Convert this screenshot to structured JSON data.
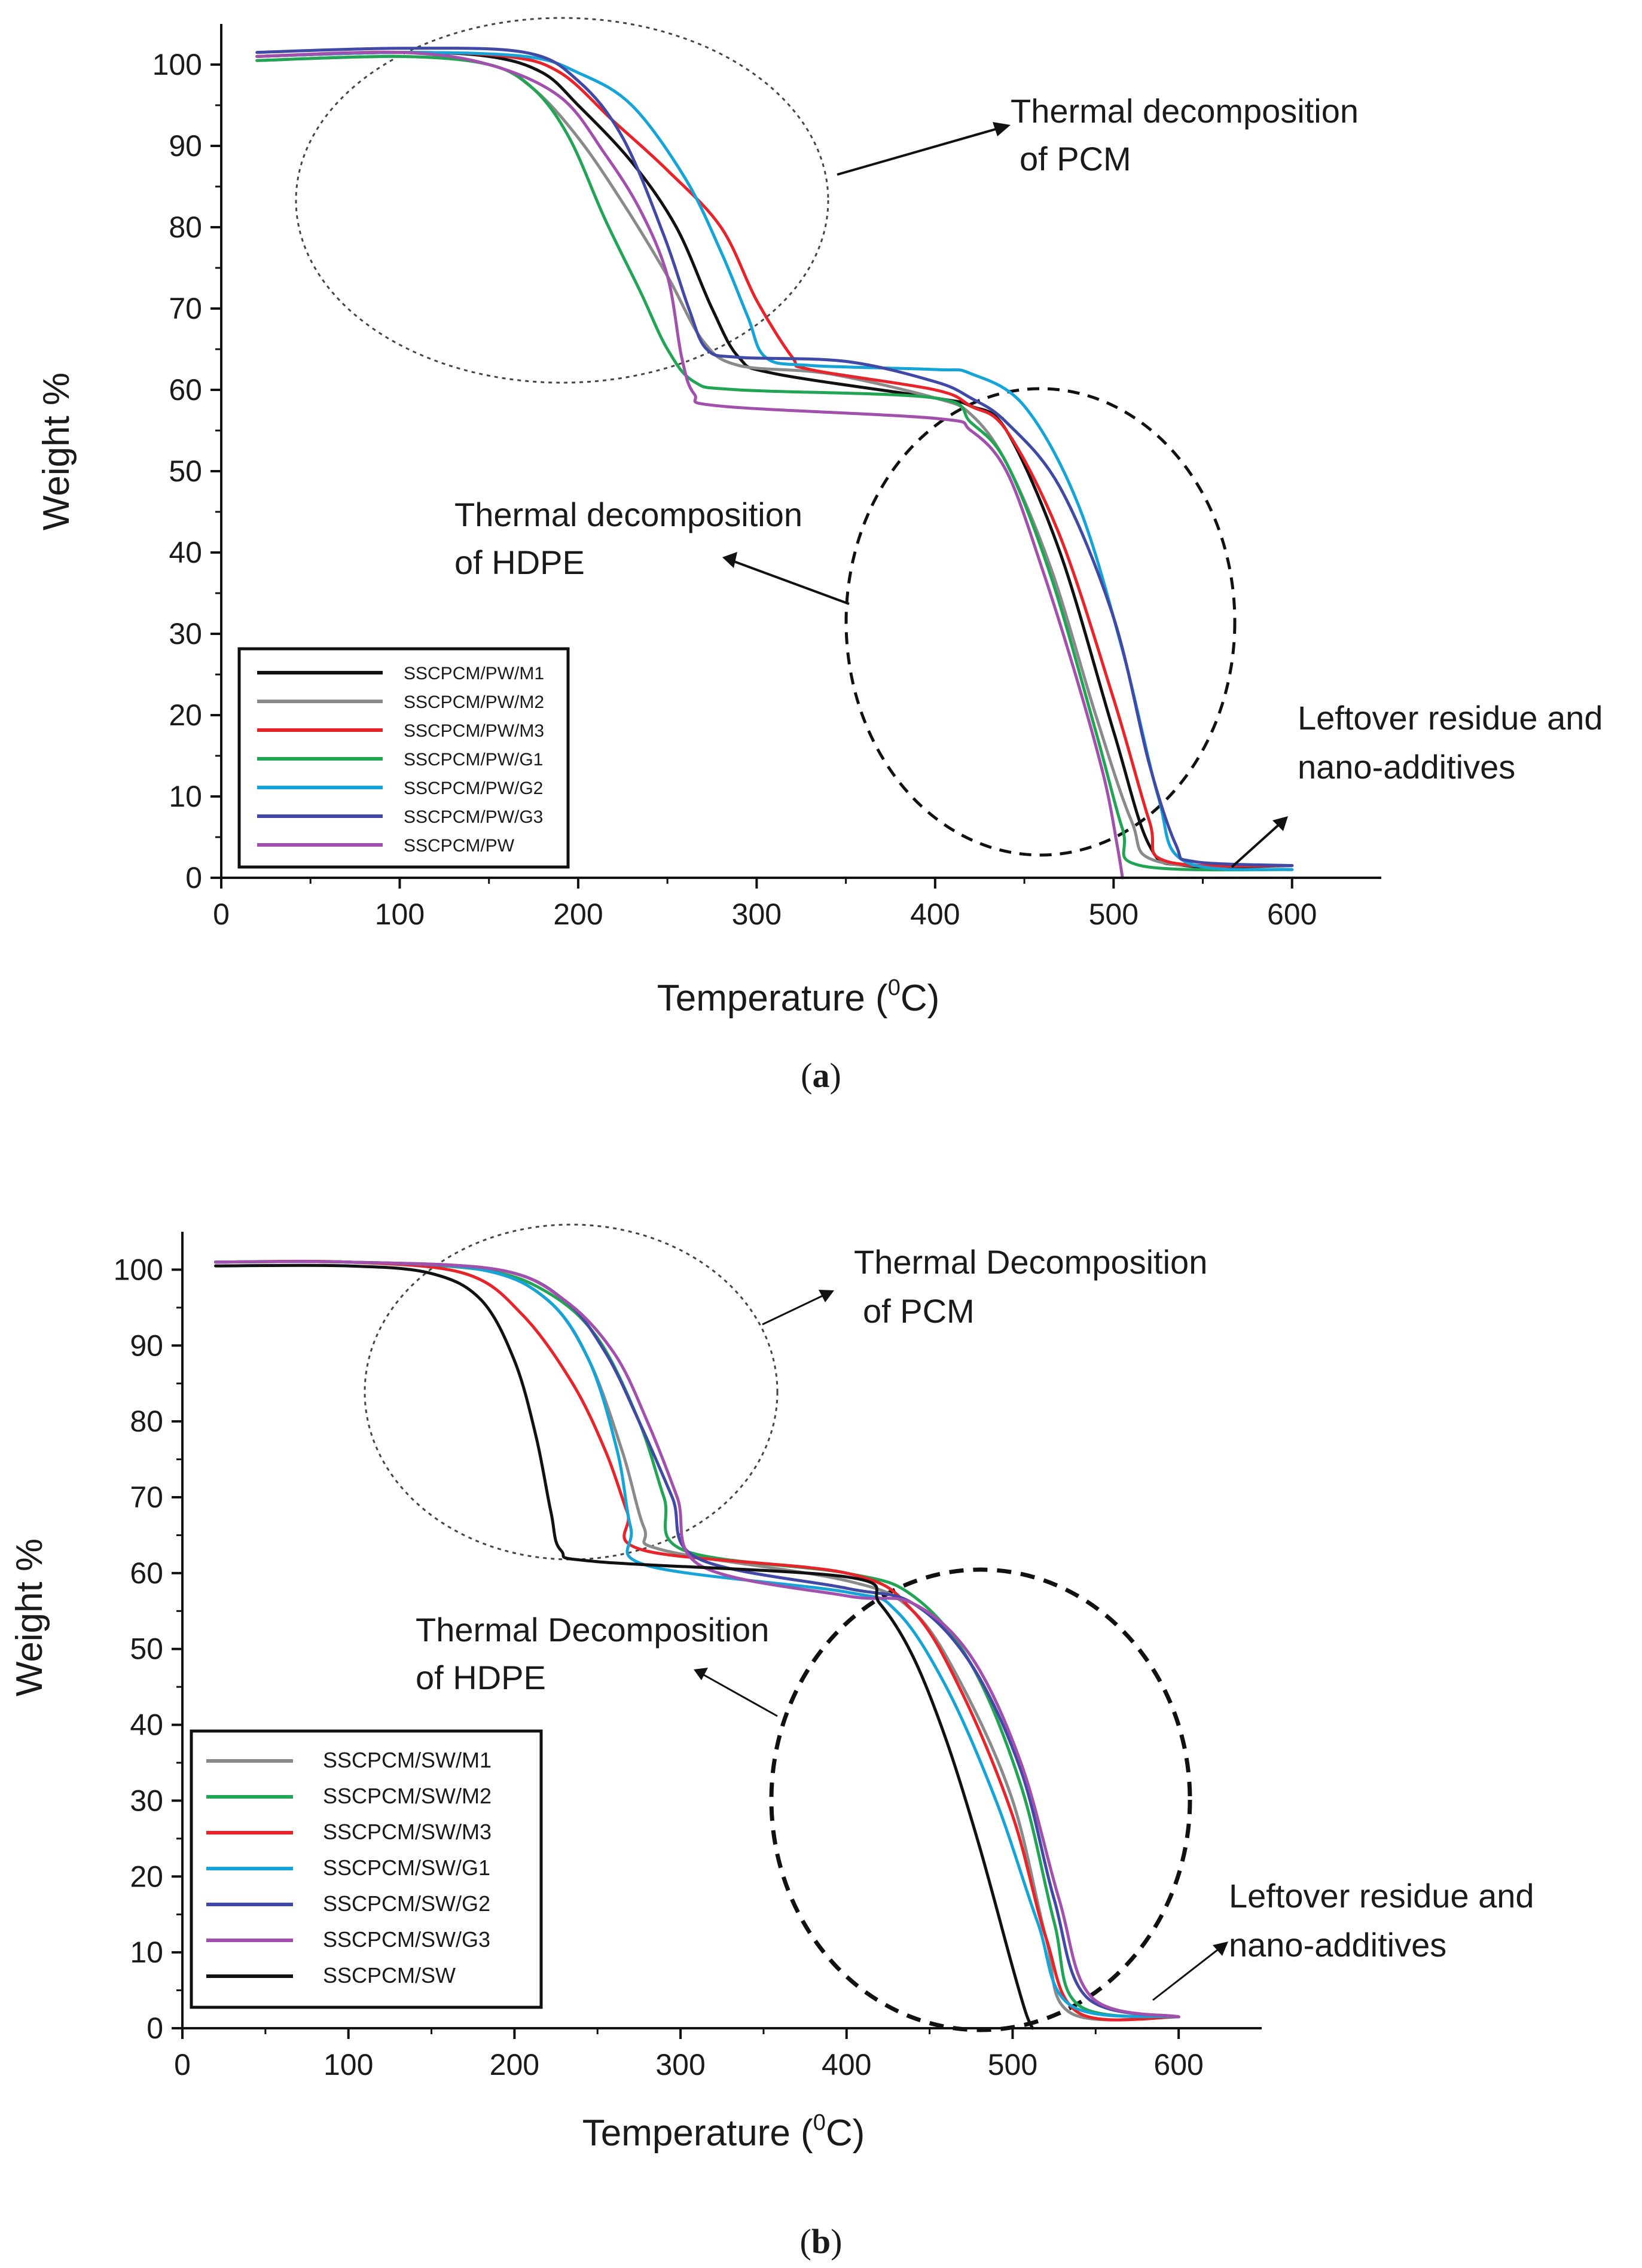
{
  "chart_data": [
    {
      "type": "line",
      "caption_letter": "a",
      "xlabel": "Temperature (",
      "xlabel_sup": "0",
      "xlabel_suffix": "C)",
      "ylabel": "Weight %",
      "xlim": [
        0,
        650
      ],
      "ylim": [
        0,
        105
      ],
      "xticks": [
        0,
        100,
        200,
        300,
        400,
        500,
        600
      ],
      "yticks": [
        0,
        10,
        20,
        30,
        40,
        50,
        60,
        70,
        80,
        90,
        100
      ],
      "legend_position": "bottom-left",
      "annotations": [
        {
          "lines": [
            "Thermal decomposition",
            "of PCM"
          ]
        },
        {
          "lines": [
            "Thermal decomposition",
            "of HDPE"
          ]
        },
        {
          "lines": [
            "Leftover residue and",
            "nano-additives"
          ]
        }
      ],
      "series": [
        {
          "name": "SSCPCM/PW/M1",
          "color": "#111111",
          "points": [
            [
              20,
              101
            ],
            [
              100,
              101.5
            ],
            [
              150,
              101
            ],
            [
              180,
              99
            ],
            [
              200,
              95
            ],
            [
              230,
              88
            ],
            [
              255,
              80
            ],
            [
              275,
              70
            ],
            [
              290,
              64
            ],
            [
              310,
              62
            ],
            [
              400,
              59
            ],
            [
              420,
              58
            ],
            [
              440,
              55
            ],
            [
              470,
              40
            ],
            [
              500,
              18
            ],
            [
              520,
              4
            ],
            [
              540,
              1.5
            ],
            [
              600,
              1.5
            ]
          ]
        },
        {
          "name": "SSCPCM/PW/M2",
          "color": "#8a8a8a",
          "points": [
            [
              20,
              100.5
            ],
            [
              100,
              101
            ],
            [
              150,
              100
            ],
            [
              175,
              97
            ],
            [
              200,
              91
            ],
            [
              225,
              83
            ],
            [
              250,
              74
            ],
            [
              270,
              66
            ],
            [
              290,
              63
            ],
            [
              340,
              62
            ],
            [
              400,
              59
            ],
            [
              420,
              57
            ],
            [
              440,
              51
            ],
            [
              465,
              38
            ],
            [
              490,
              20
            ],
            [
              510,
              7
            ],
            [
              525,
              2
            ],
            [
              600,
              1.5
            ]
          ]
        },
        {
          "name": "SSCPCM/PW/M3",
          "color": "#e8232a",
          "points": [
            [
              20,
              101
            ],
            [
              100,
              101.5
            ],
            [
              160,
              101
            ],
            [
              190,
              99
            ],
            [
              220,
              93
            ],
            [
              250,
              87
            ],
            [
              280,
              80
            ],
            [
              300,
              71
            ],
            [
              320,
              64
            ],
            [
              330,
              62.5
            ],
            [
              400,
              60
            ],
            [
              420,
              58
            ],
            [
              440,
              55
            ],
            [
              470,
              42
            ],
            [
              500,
              22
            ],
            [
              520,
              7
            ],
            [
              530,
              2
            ],
            [
              600,
              1.5
            ]
          ]
        },
        {
          "name": "SSCPCM/PW/G1",
          "color": "#21a554",
          "points": [
            [
              20,
              100.5
            ],
            [
              100,
              101
            ],
            [
              150,
              100
            ],
            [
              175,
              97
            ],
            [
              195,
              91
            ],
            [
              215,
              81
            ],
            [
              235,
              72
            ],
            [
              250,
              65
            ],
            [
              265,
              61
            ],
            [
              290,
              60
            ],
            [
              400,
              59
            ],
            [
              420,
              56
            ],
            [
              440,
              51
            ],
            [
              465,
              37
            ],
            [
              490,
              18
            ],
            [
              505,
              6
            ],
            [
              515,
              1.5
            ],
            [
              600,
              1
            ]
          ]
        },
        {
          "name": "SSCPCM/PW/G2",
          "color": "#15a4d8",
          "points": [
            [
              20,
              101
            ],
            [
              100,
              101.5
            ],
            [
              170,
              101
            ],
            [
              200,
              99
            ],
            [
              230,
              95
            ],
            [
              260,
              86
            ],
            [
              280,
              77
            ],
            [
              295,
              69
            ],
            [
              305,
              64
            ],
            [
              330,
              63
            ],
            [
              400,
              62.5
            ],
            [
              420,
              62
            ],
            [
              450,
              58
            ],
            [
              480,
              46
            ],
            [
              505,
              28
            ],
            [
              525,
              10
            ],
            [
              540,
              2
            ],
            [
              600,
              1
            ]
          ]
        },
        {
          "name": "SSCPCM/PW/G3",
          "color": "#4049a5",
          "points": [
            [
              20,
              101.5
            ],
            [
              100,
              102
            ],
            [
              170,
              101.5
            ],
            [
              200,
              98
            ],
            [
              225,
              91
            ],
            [
              248,
              79
            ],
            [
              262,
              70
            ],
            [
              272,
              65
            ],
            [
              290,
              64
            ],
            [
              350,
              63.5
            ],
            [
              400,
              61
            ],
            [
              420,
              59
            ],
            [
              440,
              56
            ],
            [
              470,
              48
            ],
            [
              500,
              32
            ],
            [
              520,
              14
            ],
            [
              535,
              4
            ],
            [
              545,
              2
            ],
            [
              600,
              1.5
            ]
          ]
        },
        {
          "name": "SSCPCM/PW",
          "color": "#a24fad",
          "points": [
            [
              20,
              101
            ],
            [
              100,
              101.5
            ],
            [
              150,
              100
            ],
            [
              190,
              96
            ],
            [
              215,
              89
            ],
            [
              235,
              82
            ],
            [
              250,
              74
            ],
            [
              258,
              64
            ],
            [
              265,
              59.5
            ],
            [
              280,
              58
            ],
            [
              400,
              56.5
            ],
            [
              420,
              55
            ],
            [
              440,
              50
            ],
            [
              460,
              38
            ],
            [
              480,
              24
            ],
            [
              495,
              12
            ],
            [
              502,
              4
            ],
            [
              505,
              0
            ]
          ]
        }
      ]
    },
    {
      "type": "line",
      "caption_letter": "b",
      "xlabel": "Temperature (",
      "xlabel_sup": "0",
      "xlabel_suffix": "C)",
      "ylabel": "Weight %",
      "xlim": [
        0,
        650
      ],
      "ylim": [
        0,
        105
      ],
      "xticks": [
        0,
        100,
        200,
        300,
        400,
        500,
        600
      ],
      "yticks": [
        0,
        10,
        20,
        30,
        40,
        50,
        60,
        70,
        80,
        90,
        100
      ],
      "legend_position": "bottom-left",
      "annotations": [
        {
          "lines": [
            "Thermal Decomposition",
            "of PCM"
          ]
        },
        {
          "lines": [
            "Thermal Decomposition",
            "of HDPE"
          ]
        },
        {
          "lines": [
            "Leftover residue and",
            "nano-additives"
          ]
        }
      ],
      "series": [
        {
          "name": "SSCPCM/SW/M1",
          "color": "#8a8a8a",
          "points": [
            [
              20,
              101
            ],
            [
              100,
              101
            ],
            [
              180,
              100
            ],
            [
              220,
              96
            ],
            [
              245,
              88
            ],
            [
              265,
              76
            ],
            [
              278,
              66
            ],
            [
              290,
              63
            ],
            [
              400,
              59
            ],
            [
              440,
              55
            ],
            [
              470,
              45
            ],
            [
              500,
              30
            ],
            [
              520,
              12
            ],
            [
              535,
              2
            ],
            [
              600,
              1.5
            ]
          ]
        },
        {
          "name": "SSCPCM/SW/M2",
          "color": "#21a554",
          "points": [
            [
              20,
              101
            ],
            [
              100,
              101
            ],
            [
              180,
              100
            ],
            [
              220,
              97
            ],
            [
              250,
              91
            ],
            [
              275,
              80
            ],
            [
              290,
              70
            ],
            [
              302,
              63
            ],
            [
              400,
              60
            ],
            [
              440,
              57
            ],
            [
              475,
              48
            ],
            [
              505,
              32
            ],
            [
              525,
              14
            ],
            [
              540,
              3
            ],
            [
              600,
              1.5
            ]
          ]
        },
        {
          "name": "SSCPCM/SW/M3",
          "color": "#e8232a",
          "points": [
            [
              20,
              101
            ],
            [
              100,
              101
            ],
            [
              170,
              99.5
            ],
            [
              205,
              94
            ],
            [
              235,
              85
            ],
            [
              255,
              76
            ],
            [
              268,
              68
            ],
            [
              278,
              63
            ],
            [
              400,
              60
            ],
            [
              440,
              55
            ],
            [
              470,
              44
            ],
            [
              500,
              28
            ],
            [
              520,
              12
            ],
            [
              540,
              2
            ],
            [
              600,
              1.5
            ]
          ]
        },
        {
          "name": "SSCPCM/SW/G1",
          "color": "#15a4d8",
          "points": [
            [
              20,
              101
            ],
            [
              100,
              101
            ],
            [
              180,
              100
            ],
            [
              220,
              96
            ],
            [
              245,
              88
            ],
            [
              262,
              76
            ],
            [
              270,
              66
            ],
            [
              280,
              61
            ],
            [
              400,
              57.5
            ],
            [
              430,
              55
            ],
            [
              460,
              45
            ],
            [
              490,
              30
            ],
            [
              515,
              14
            ],
            [
              535,
              3
            ],
            [
              600,
              1.5
            ]
          ]
        },
        {
          "name": "SSCPCM/SW/G2",
          "color": "#4049a5",
          "points": [
            [
              20,
              101
            ],
            [
              100,
              101
            ],
            [
              190,
              100
            ],
            [
              230,
              96
            ],
            [
              255,
              89
            ],
            [
              275,
              80
            ],
            [
              295,
              70
            ],
            [
              310,
              62
            ],
            [
              400,
              58
            ],
            [
              440,
              56
            ],
            [
              475,
              48
            ],
            [
              505,
              34
            ],
            [
              525,
              17
            ],
            [
              545,
              4
            ],
            [
              600,
              1.5
            ]
          ]
        },
        {
          "name": "SSCPCM/SW/G3",
          "color": "#a24fad",
          "points": [
            [
              20,
              101
            ],
            [
              100,
              101
            ],
            [
              190,
              100
            ],
            [
              230,
              96
            ],
            [
              260,
              89
            ],
            [
              280,
              80
            ],
            [
              298,
              70
            ],
            [
              312,
              61
            ],
            [
              400,
              57
            ],
            [
              440,
              56
            ],
            [
              475,
              49
            ],
            [
              505,
              35
            ],
            [
              528,
              17
            ],
            [
              548,
              4
            ],
            [
              600,
              1.5
            ]
          ]
        },
        {
          "name": "SSCPCM/SW",
          "color": "#111111",
          "points": [
            [
              20,
              100.5
            ],
            [
              100,
              100.5
            ],
            [
              150,
              99.5
            ],
            [
              180,
              96
            ],
            [
              200,
              88
            ],
            [
              213,
              78
            ],
            [
              222,
              68
            ],
            [
              228,
              63
            ],
            [
              250,
              61.5
            ],
            [
              400,
              59.5
            ],
            [
              420,
              56
            ],
            [
              440,
              49
            ],
            [
              460,
              38
            ],
            [
              480,
              24
            ],
            [
              500,
              8
            ],
            [
              508,
              2
            ],
            [
              512,
              0
            ]
          ]
        }
      ]
    }
  ]
}
